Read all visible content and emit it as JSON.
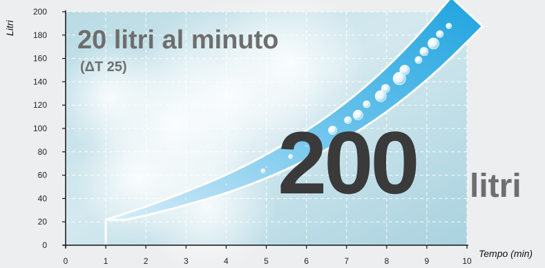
{
  "chart_data": {
    "type": "area",
    "title": "20 litri al minuto",
    "subtitle": "(ΔT 25)",
    "xlabel": "Tempo (min)",
    "ylabel": "Litri",
    "xlim": [
      0,
      10
    ],
    "ylim": [
      0,
      200
    ],
    "x_ticks": [
      0,
      1,
      2,
      3,
      4,
      5,
      6,
      7,
      8,
      9,
      10
    ],
    "y_ticks": [
      0,
      20,
      40,
      60,
      80,
      100,
      120,
      140,
      160,
      180,
      200
    ],
    "grid": true,
    "series": [
      {
        "x": [
          1,
          2,
          3,
          4,
          5,
          6,
          7,
          8,
          9,
          10
        ],
        "y": [
          20,
          29,
          40,
          52,
          67,
          85,
          106,
          132,
          163,
          200
        ]
      }
    ],
    "annotations": {
      "big_value": "200",
      "big_unit": "litri"
    }
  },
  "colors": {
    "band": "#39aee3",
    "band_edge": "#ffffff",
    "headline": "#6e6e6e",
    "big_number": "#3a3a3a",
    "grid": "#ffffff",
    "axis": "#111111"
  }
}
